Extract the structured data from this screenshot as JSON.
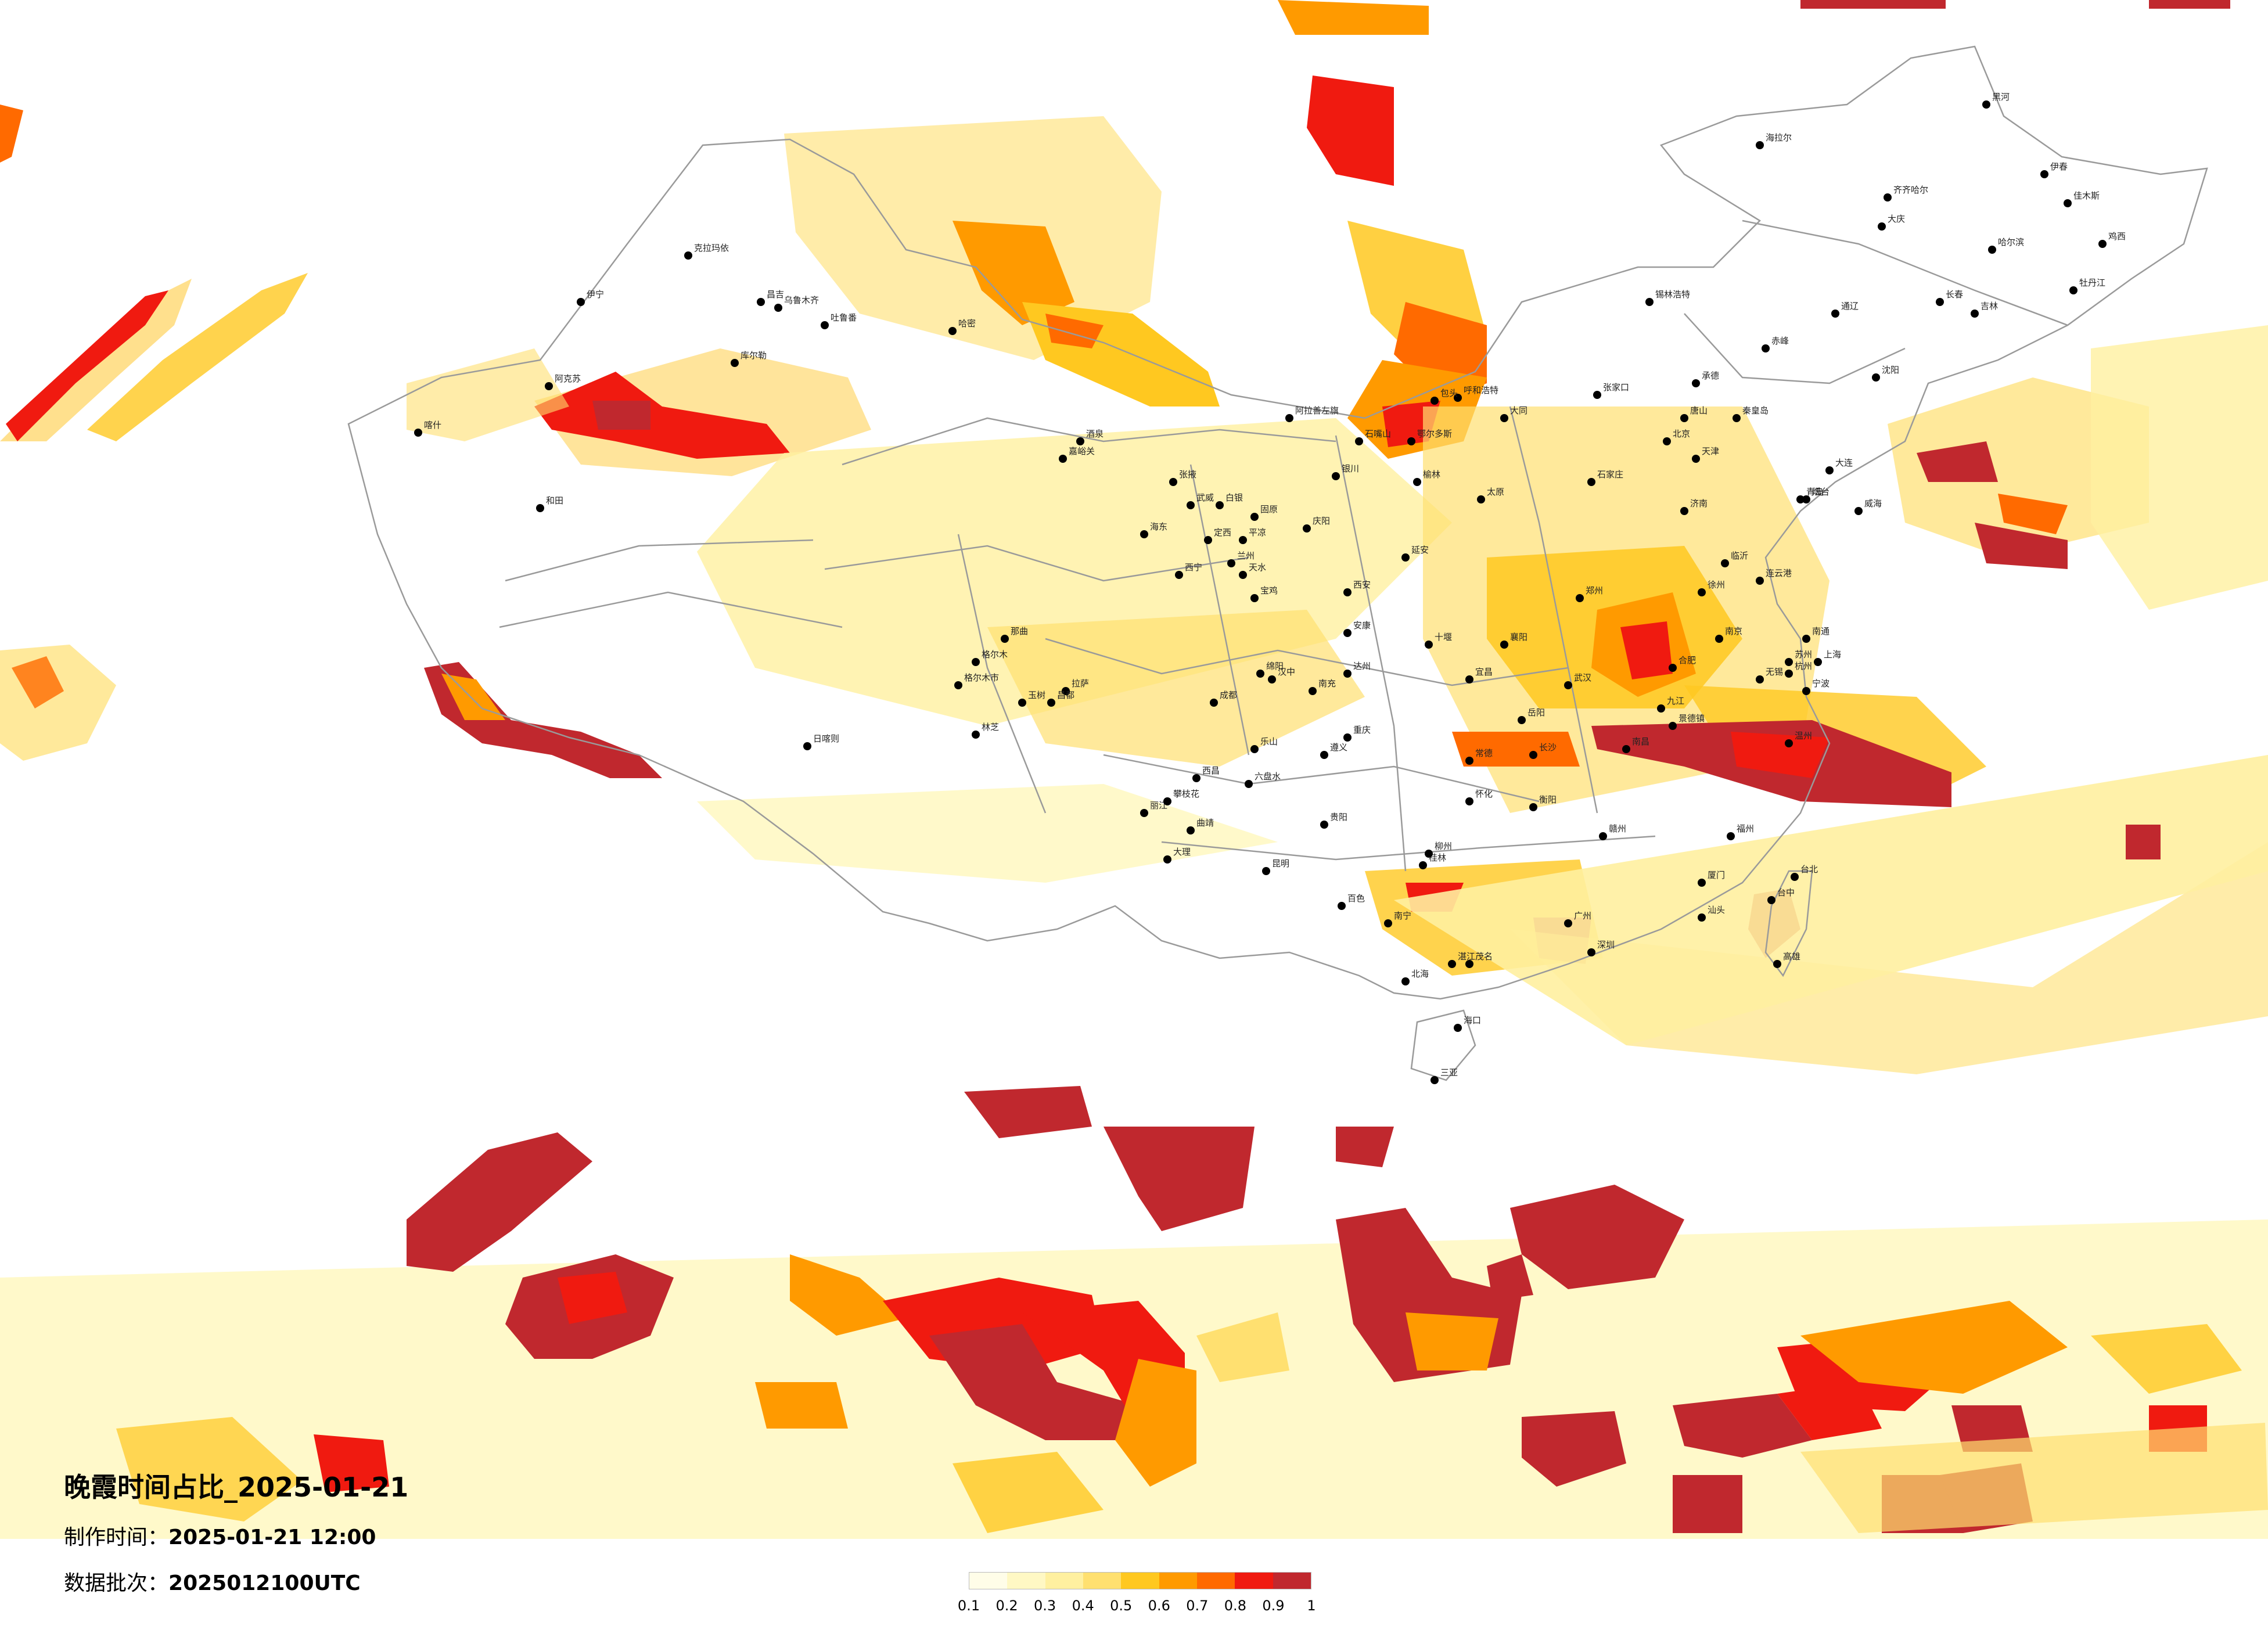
{
  "title": "晚霞时间占比_2025-01-21",
  "made_time": {
    "label": "制作时间：",
    "value": "2025-01-21 12:00"
  },
  "data_batch": {
    "label": "数据批次：",
    "value": "2025012100UTC"
  },
  "legend": {
    "colors": [
      "#fffde8",
      "#fff8c4",
      "#fff0a0",
      "#ffe070",
      "#ffc820",
      "#ff9a00",
      "#ff6a00",
      "#f01a10",
      "#c0282e"
    ],
    "ticks": [
      "0.1",
      "0.2",
      "0.3",
      "0.4",
      "0.5",
      "0.6",
      "0.7",
      "0.8",
      "0.9",
      "1"
    ]
  },
  "cities": [
    "克拉玛依",
    "昌吉",
    "乌鲁木齐",
    "吐鲁番",
    "伊宁",
    "阿克苏",
    "库尔勒",
    "喀什",
    "和田",
    "哈密",
    "酒泉",
    "嘉峪关",
    "张掖",
    "武威",
    "兰州",
    "西宁",
    "格尔木",
    "拉萨",
    "日喀则",
    "林芝",
    "昌都",
    "那曲",
    "玉树",
    "银川",
    "石嘴山",
    "呼和浩特",
    "包头",
    "鄂尔多斯",
    "锡林浩特",
    "北京",
    "天津",
    "石家庄",
    "太原",
    "济南",
    "青岛",
    "郑州",
    "西安",
    "宝鸡",
    "汉中",
    "成都",
    "重庆",
    "贵阳",
    "昆明",
    "大理",
    "南宁",
    "桂林",
    "北海",
    "海口",
    "三亚",
    "广州",
    "深圳",
    "汕头",
    "福州",
    "厦门",
    "台北",
    "高雄",
    "台中",
    "杭州",
    "温州",
    "宁波",
    "上海",
    "南京",
    "合肥",
    "武汉",
    "长沙",
    "南昌",
    "赣州",
    "宜昌",
    "襄阳",
    "十堰",
    "沈阳",
    "大连",
    "长春",
    "吉林",
    "哈尔滨",
    "齐齐哈尔",
    "大庆",
    "牡丹江",
    "佳木斯",
    "鸡西",
    "伊春",
    "黑河",
    "海拉尔",
    "通辽",
    "赤峰",
    "承德",
    "张家口",
    "大同",
    "秦皇岛",
    "唐山",
    "烟台",
    "威海",
    "临沂",
    "徐州",
    "连云港",
    "南通",
    "苏州",
    "无锡",
    "九江",
    "景德镇",
    "遵义",
    "六盘水",
    "曲靖",
    "丽江",
    "怀化",
    "常德",
    "岳阳",
    "衡阳",
    "湛江",
    "茂名",
    "柳州",
    "百色",
    "西昌",
    "攀枝花",
    "乐山",
    "绵阳",
    "南充",
    "达州",
    "安康",
    "延安",
    "榆林",
    "固原",
    "平凉",
    "天水",
    "定西",
    "白银",
    "庆阳",
    "阿拉善左旗",
    "海东",
    "格尔木市"
  ]
}
